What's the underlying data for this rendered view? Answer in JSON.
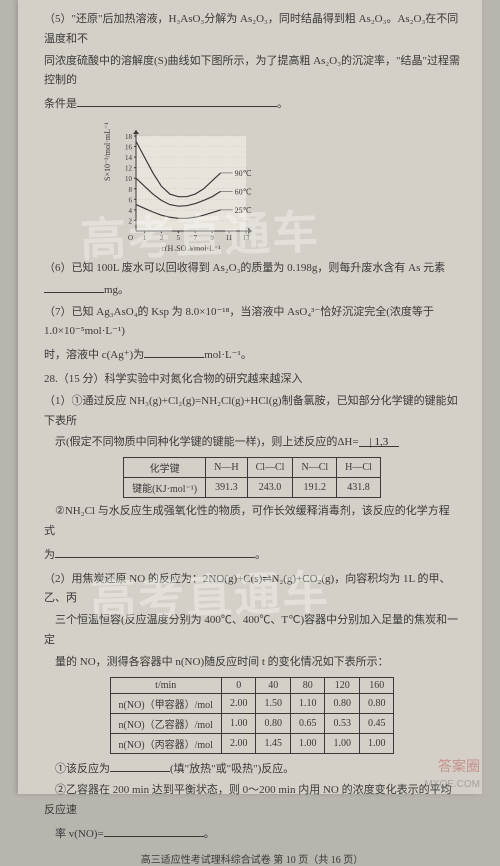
{
  "q5": {
    "prefix": "（5）\"还原\"后加热溶液，H₃AsO₃分解为 As₂O₃，同时结晶得到粗 As₂O₃。As₂O₃在不同温度和不",
    "line2": "同浓度硫酸中的溶解度(S)曲线如下图所示，为了提高粗 As₂O₃的沉淀率，\"结晶\"过程需控制的",
    "line3": "条件是"
  },
  "chart": {
    "ylabel": "S×10⁻³/mol·mL⁻¹",
    "xlabel": "c(H₂SO₄)/mol·L⁻¹",
    "yticks": [
      "2",
      "4",
      "6",
      "8",
      "10",
      "12",
      "14",
      "16",
      "18"
    ],
    "xticks": [
      "1",
      "3",
      "5",
      "7",
      "9",
      "11",
      "13"
    ],
    "series": [
      {
        "label": "90℃",
        "color": "#3a3a3a",
        "pts": [
          [
            0,
            17
          ],
          [
            1,
            14
          ],
          [
            2,
            11
          ],
          [
            3,
            8.5
          ],
          [
            4,
            7
          ],
          [
            5,
            6.5
          ],
          [
            6,
            6.5
          ],
          [
            7,
            7
          ],
          [
            8,
            8
          ],
          [
            9,
            9.5
          ],
          [
            10,
            11
          ]
        ]
      },
      {
        "label": "60℃",
        "color": "#3a3a3a",
        "pts": [
          [
            0,
            10
          ],
          [
            1,
            8.5
          ],
          [
            2,
            7
          ],
          [
            3,
            5.8
          ],
          [
            4,
            5
          ],
          [
            5,
            4.7
          ],
          [
            6,
            4.8
          ],
          [
            7,
            5.2
          ],
          [
            8,
            5.8
          ],
          [
            9,
            6.5
          ],
          [
            10,
            7.5
          ]
        ]
      },
      {
        "label": "25℃",
        "color": "#3a3a3a",
        "pts": [
          [
            0,
            5
          ],
          [
            1,
            4.3
          ],
          [
            2,
            3.6
          ],
          [
            3,
            3
          ],
          [
            4,
            2.6
          ],
          [
            5,
            2.4
          ],
          [
            6,
            2.4
          ],
          [
            7,
            2.6
          ],
          [
            8,
            3
          ],
          [
            9,
            3.5
          ],
          [
            10,
            4
          ]
        ]
      }
    ],
    "bg": "#e8e4dc",
    "axis_color": "#3a3a3a"
  },
  "q6": "（6）已知 100L 废水可以回收得到 As₂O₃的质量为 0.198g，则每升废水含有 As 元素",
  "q6_unit": "mg。",
  "q7": {
    "line1": "（7）已知 Ag₃AsO₄的 Ksp 为 8.0×10⁻¹⁸，当溶液中 AsO₄³⁻恰好沉淀完全(浓度等于 1.0×10⁻⁵mol·L⁻¹)",
    "line2": "时，溶液中 c(Ag⁺)为",
    "unit": "mol·L⁻¹。"
  },
  "q28_head": "28.（15 分）科学实验中对氮化合物的研究越来越深入",
  "q28_1": {
    "line1": "（1）①通过反应 NH₃(g)+Cl₂(g)=NH₂Cl(g)+HCl(g)制备氯胺，已知部分化学键的键能如下表所",
    "line2": "示(假定不同物质中同种化学键的键能一样)，则上述反应的ΔH=",
    "hw": "| 1,3"
  },
  "bond_table": {
    "headers": [
      "化学键",
      "N—H",
      "Cl—Cl",
      "N—Cl",
      "H—Cl"
    ],
    "row": [
      "键能(KJ·mol⁻¹)",
      "391.3",
      "243.0",
      "191.2",
      "431.8"
    ]
  },
  "q28_1b": {
    "line1": "②NH₂Cl 与水反应生成强氧化性的物质，可作长效缓释消毒剂，该反应的化学方程式",
    "line2": "为"
  },
  "q28_2": {
    "line1": "（2）用焦炭还原 NO 的反应为：2NO(g)+C(s)⇌N₂(g)+CO₂(g)，向容积均为 1L 的甲、乙、丙",
    "line2": "三个恒温恒容(反应温度分别为 400℃、400℃、T℃)容器中分别加入足量的焦炭和一定",
    "line3": "量的 NO，测得各容器中 n(NO)随反应时间 t 的变化情况如下表所示："
  },
  "no_table": {
    "headers": [
      "t/min",
      "0",
      "40",
      "80",
      "120",
      "160"
    ],
    "rows": [
      [
        "n(NO)（甲容器）/mol",
        "2.00",
        "1.50",
        "1.10",
        "0.80",
        "0.80"
      ],
      [
        "n(NO)（乙容器）/mol",
        "1.00",
        "0.80",
        "0.65",
        "0.53",
        "0.45"
      ],
      [
        "n(NO)（丙容器）/mol",
        "2.00",
        "1.45",
        "1.00",
        "1.00",
        "1.00"
      ]
    ],
    "hw_marks": {
      "r2c3": "1.00",
      "r2c4_over": "°"
    }
  },
  "q28_2b": {
    "line1": "①该反应为",
    "mid": "(填\"放热\"或\"吸热\")反应。",
    "line2": "②乙容器在 200 min 达到平衡状态，则 0～200 min 内用 NO 的浓度变化表示的平均反应速",
    "line3": "率 v(NO)="
  },
  "footer": "高三适应性考试理科综合试卷  第 10 页（共 16 页）",
  "wm": "高考直通车",
  "brand1": "答案圈",
  "brand2": "MXQE.COM"
}
